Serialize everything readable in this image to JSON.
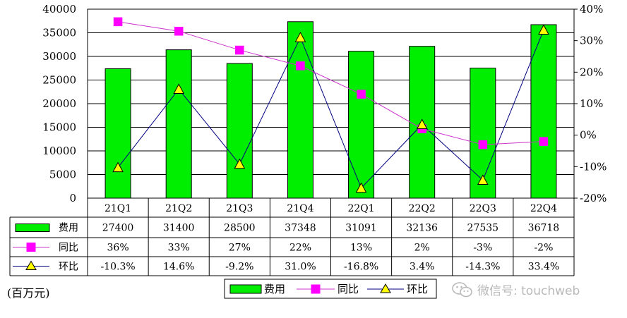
{
  "unit_label": "(百万元)",
  "watermark": "微信号: touchweb",
  "watermark_icon": "wechat-icon",
  "colors": {
    "bar": "#00ee00",
    "bar_edge": "#000000",
    "yoy": "#ff00ff",
    "qoq": "#ffff00",
    "qoq_line": "#000080",
    "yoy_line": "#cc33cc"
  },
  "chart_data": {
    "type": "bar",
    "categories": [
      "21Q1",
      "21Q2",
      "21Q3",
      "21Q4",
      "22Q1",
      "22Q2",
      "22Q3",
      "22Q4"
    ],
    "series": [
      {
        "name": "费用",
        "type": "bar",
        "axis": "left",
        "values": [
          27400,
          31400,
          28500,
          37348,
          31091,
          32136,
          27535,
          36718
        ]
      },
      {
        "name": "同比",
        "type": "line",
        "axis": "right",
        "values": [
          36,
          33,
          27,
          22,
          13,
          2,
          -3,
          -2
        ]
      },
      {
        "name": "环比",
        "type": "line",
        "axis": "right",
        "values": [
          -10.3,
          14.6,
          -9.2,
          31.0,
          -16.8,
          3.4,
          -14.3,
          33.4
        ]
      }
    ],
    "table": {
      "rows": [
        {
          "label": "费用",
          "cells": [
            "27400",
            "31400",
            "28500",
            "37348",
            "31091",
            "32136",
            "27535",
            "36718"
          ]
        },
        {
          "label": "同比",
          "cells": [
            "36%",
            "33%",
            "27%",
            "22%",
            "13%",
            "2%",
            "-3%",
            "-2%"
          ]
        },
        {
          "label": "环比",
          "cells": [
            "-10.3%",
            "14.6%",
            "-9.2%",
            "31.0%",
            "-16.8%",
            "3.4%",
            "-14.3%",
            "33.4%"
          ]
        }
      ]
    },
    "y_left": {
      "ylim": [
        0,
        40000
      ],
      "ticks": [
        0,
        5000,
        10000,
        15000,
        20000,
        25000,
        30000,
        35000,
        40000
      ]
    },
    "y_right": {
      "ylim": [
        -20,
        40
      ],
      "ticks": [
        "-20%",
        "-10%",
        "0%",
        "10%",
        "20%",
        "30%",
        "40%"
      ]
    },
    "legend": {
      "placement": "bottom",
      "entries": [
        "费用",
        "同比",
        "环比"
      ]
    },
    "grid": true
  }
}
